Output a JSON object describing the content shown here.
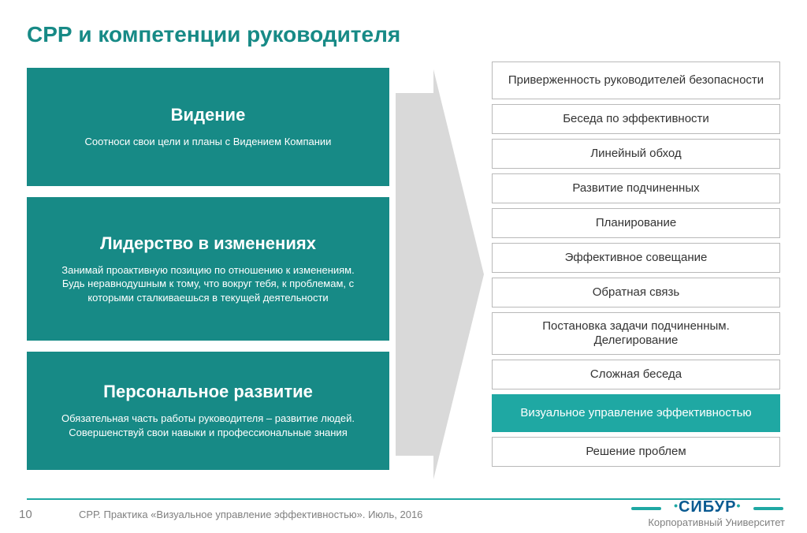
{
  "title": "СРР и компетенции руководителя",
  "colors": {
    "accent": "#178a86",
    "highlight": "#1fa8a3",
    "arrow": "#d9d9d9",
    "border": "#b9b9b9",
    "text_muted": "#808080",
    "brand_blue": "#0a5a91",
    "bg": "#ffffff"
  },
  "competencies": [
    {
      "title": "Видение",
      "desc": "Соотноси свои цели и планы с Видением Компании"
    },
    {
      "title": "Лидерство в изменениях",
      "desc": "Занимай проактивную позицию по отношению к изменениям. Будь неравнодушным к тому, что вокруг тебя, к проблемам, с которыми сталкиваешься в текущей деятельности"
    },
    {
      "title": "Персональное развитие",
      "desc": "Обязательная часть работы руководителя – развитие людей.  Совершенствуй свои навыки и профессиональные знания"
    }
  ],
  "items": [
    {
      "label": "Приверженность руководителей безопасности",
      "tall": true,
      "hl": false
    },
    {
      "label": "Беседа по эффективности",
      "tall": false,
      "hl": false
    },
    {
      "label": "Линейный обход",
      "tall": false,
      "hl": false
    },
    {
      "label": "Развитие подчиненных",
      "tall": false,
      "hl": false
    },
    {
      "label": "Планирование",
      "tall": false,
      "hl": false
    },
    {
      "label": "Эффективное совещание",
      "tall": false,
      "hl": false
    },
    {
      "label": "Обратная связь",
      "tall": false,
      "hl": false
    },
    {
      "label": "Постановка задачи подчиненным. Делегирование",
      "tall": true,
      "hl": false
    },
    {
      "label": "Сложная беседа",
      "tall": false,
      "hl": false
    },
    {
      "label": "Визуальное управление эффективностью",
      "tall": true,
      "hl": true
    },
    {
      "label": "Решение проблем",
      "tall": false,
      "hl": false
    }
  ],
  "footer": {
    "page": "10",
    "text": "СРР. Практика «Визуальное управление эффективностью». Июль, 2016",
    "brand": "СИБУР",
    "brand_sub": "Корпоративный Университет"
  }
}
